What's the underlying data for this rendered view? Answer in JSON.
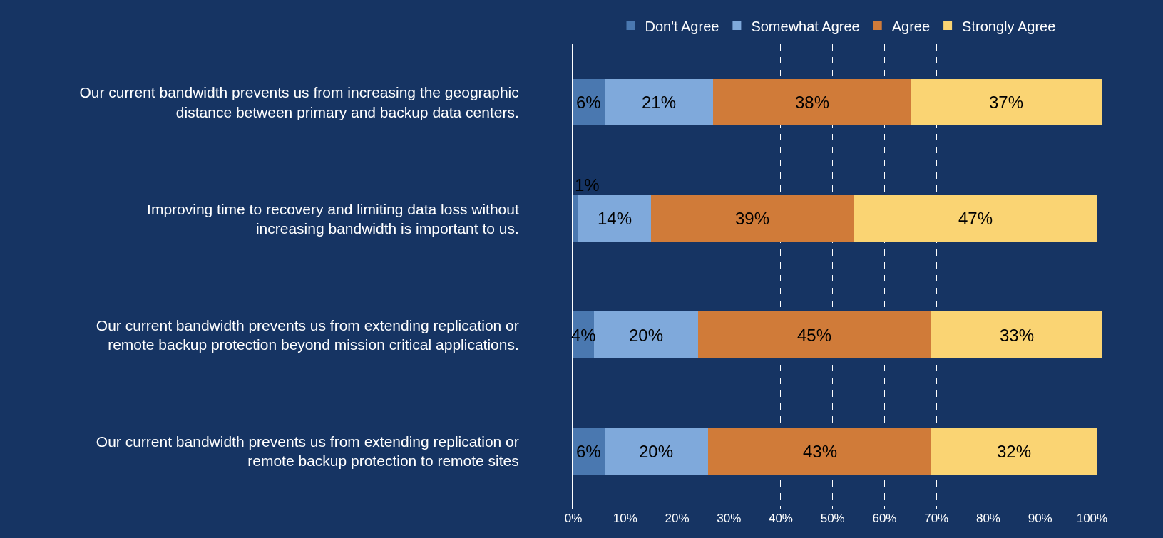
{
  "chart_data": {
    "type": "bar",
    "orientation": "horizontal",
    "stacked": true,
    "grid": "x",
    "legend": "top",
    "categories": [
      "Our current bandwidth prevents us from increasing the geographic distance between primary and backup data centers.",
      "Improving time to recovery and limiting data loss without increasing bandwidth is important to us.",
      "Our current bandwidth prevents us from extending replication or remote backup protection beyond mission critical applications.",
      "Our current bandwidth prevents us from extending replication or remote backup protection to remote sites"
    ],
    "series": [
      {
        "name": "Don't Agree",
        "color": "#4a78b0",
        "values": [
          6,
          1,
          4,
          6
        ],
        "value_labels": [
          "6%",
          "1%",
          "4%",
          "6%"
        ]
      },
      {
        "name": "Somewhat Agree",
        "color": "#7fa9db",
        "values": [
          21,
          14,
          20,
          20
        ],
        "value_labels": [
          "21%",
          "14%",
          "20%",
          "20%"
        ]
      },
      {
        "name": "Agree",
        "color": "#d07b39",
        "values": [
          38,
          39,
          45,
          43
        ],
        "value_labels": [
          "38%",
          "39%",
          "45%",
          "43%"
        ]
      },
      {
        "name": "Strongly Agree",
        "color": "#fad473",
        "values": [
          37,
          47,
          33,
          32
        ],
        "value_labels": [
          "37%",
          "47%",
          "33%",
          "32%"
        ]
      }
    ],
    "xlim": [
      0,
      102
    ],
    "xticks": [
      {
        "value": 0,
        "label": "0%"
      },
      {
        "value": 10,
        "label": "10%"
      },
      {
        "value": 20,
        "label": "20%"
      },
      {
        "value": 30,
        "label": "30%"
      },
      {
        "value": 40,
        "label": "40%"
      },
      {
        "value": 50,
        "label": "50%"
      },
      {
        "value": 60,
        "label": "60%"
      },
      {
        "value": 70,
        "label": "70%"
      },
      {
        "value": 80,
        "label": "80%"
      },
      {
        "value": 90,
        "label": "90%"
      },
      {
        "value": 100,
        "label": "100%"
      }
    ]
  }
}
